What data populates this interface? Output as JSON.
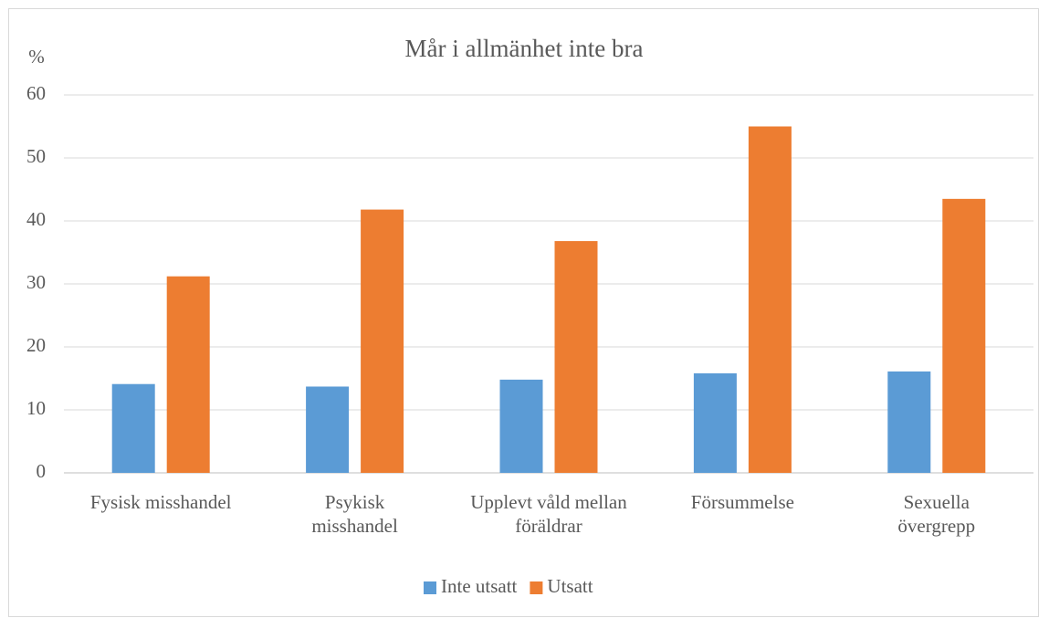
{
  "chart_data": {
    "type": "bar",
    "title": "Mår i allmänhet inte bra",
    "y_label": "%",
    "categories": [
      "Fysisk misshandel",
      "Psykisk misshandel",
      "Upplevt våld mellan föräldrar",
      "Försummelse",
      "Sexuella övergrepp"
    ],
    "series": [
      {
        "name": "Inte utsatt",
        "color": "#5b9bd5",
        "values": [
          14.1,
          13.7,
          14.8,
          15.8,
          16.1
        ]
      },
      {
        "name": "Utsatt",
        "color": "#ed7d31",
        "values": [
          31.2,
          41.8,
          36.8,
          55.0,
          43.5
        ]
      }
    ],
    "ylim": [
      0,
      60
    ],
    "yticks": [
      0,
      10,
      20,
      30,
      40,
      50,
      60
    ],
    "grid": true,
    "legend": "bottom"
  }
}
